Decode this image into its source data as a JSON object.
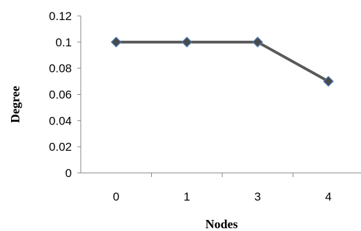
{
  "chart_data": {
    "type": "line",
    "title": "",
    "xlabel": "Nodes",
    "ylabel": "Degree",
    "categories": [
      "0",
      "1",
      "3",
      "4"
    ],
    "series": [
      {
        "values": [
          0.1,
          0.1,
          0.1,
          0.07
        ]
      }
    ],
    "ylim": [
      0,
      0.12
    ],
    "yticks": [
      "0",
      "0.02",
      "0.04",
      "0.06",
      "0.08",
      "0.1",
      "0.12"
    ],
    "grid": false,
    "legend": "none",
    "line_color": "#595959",
    "marker": "diamond",
    "marker_color": "#4a4a4a",
    "marker_edge_color": "#4f81bd"
  }
}
